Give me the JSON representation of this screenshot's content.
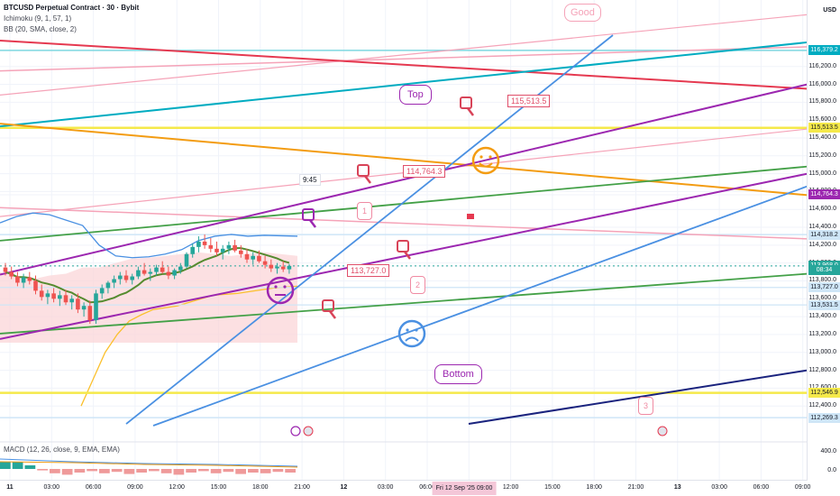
{
  "legend": {
    "title": "BTCUSD Perpetual Contract · 30 · Bybit",
    "ichimoku": "Ichimoku (9, 1, 57, 1)",
    "bb": "BB (20, SMA, close, 2)",
    "macd": "MACD (12, 26, close, 9, EMA, EMA)"
  },
  "colors": {
    "up": "#26a69a",
    "down": "#ef5350",
    "red_line": "#e53950",
    "teal_line": "#00acc1",
    "purple_line": "#9c27b0",
    "green_line": "#43a047",
    "orange_line": "#f39c12",
    "blue_line": "#4a90e2",
    "navy_line": "#1a237e",
    "yellow_line": "#f5e94a",
    "pink_line": "#f5a3b8"
  },
  "chart_data": {
    "type": "candlestick",
    "currency_label": "USD",
    "y_ticks": [
      "116,379.2",
      "116,200.0",
      "116,000.0",
      "115,800.0",
      "115,600.0",
      "115,513.5",
      "115,400.0",
      "115,200.0",
      "115,000.0",
      "114,800.0",
      "114,764.3",
      "114,600.0",
      "114,400.0",
      "114,318.2",
      "114,200.0",
      "114,000.0",
      "113,968.0",
      "113,800.0",
      "113,727.0",
      "113,600.0",
      "113,531.5",
      "113,400.0",
      "113,200.0",
      "113,000.0",
      "112,800.0",
      "112,600.0",
      "112,546.9",
      "112,400.0",
      "112,269.3"
    ],
    "ylim": [
      112180,
      116540
    ],
    "price_tags": [
      {
        "label": "116,379.2",
        "value": 116379.2,
        "color": "#00acc1"
      },
      {
        "label": "115,513.5",
        "value": 115513.5,
        "color": "#f5e94a"
      },
      {
        "label": "114,764.3",
        "value": 114764.3,
        "color": "#9c27b0"
      },
      {
        "label": "114,318.2",
        "value": 114318.2,
        "color": "#cfe6f7"
      },
      {
        "label": "113,968.0",
        "value": 113968.0,
        "color": "#26a69a"
      },
      {
        "label": "08:34",
        "value": 113925,
        "color": "#26a69a"
      },
      {
        "label": "113,727.0",
        "value": 113727.0,
        "color": "#cfe6f7"
      },
      {
        "label": "113,531.5",
        "value": 113531.5,
        "color": "#cfe6f7"
      },
      {
        "label": "112,546.9",
        "value": 112546.9,
        "color": "#f5e94a"
      },
      {
        "label": "112,269.3",
        "value": 112269.3,
        "color": "#cfe6f7"
      }
    ],
    "macd_ticks": [
      "400.0",
      "0.0"
    ],
    "x_ticks": [
      "11",
      "03:00",
      "06:00",
      "09:00",
      "12:00",
      "15:00",
      "18:00",
      "21:00",
      "12",
      "03:00",
      "06:00",
      "09:00",
      "12:00",
      "15:00",
      "18:00",
      "21:00",
      "13",
      "03:00",
      "06:00",
      "09:00"
    ],
    "highlight_time": "Fri 12 Sep '25 09:00",
    "flag_time": "9:45",
    "candles": [
      [
        113950,
        114000,
        113860,
        113900
      ],
      [
        113900,
        113960,
        113820,
        113850
      ],
      [
        113850,
        113900,
        113740,
        113780
      ],
      [
        113780,
        113880,
        113720,
        113840
      ],
      [
        113840,
        113900,
        113760,
        113800
      ],
      [
        113800,
        113860,
        113650,
        113690
      ],
      [
        113690,
        113760,
        113580,
        113620
      ],
      [
        113620,
        113700,
        113540,
        113660
      ],
      [
        113660,
        113720,
        113560,
        113600
      ],
      [
        113600,
        113690,
        113520,
        113640
      ],
      [
        113640,
        113700,
        113530,
        113560
      ],
      [
        113560,
        113640,
        113480,
        113600
      ],
      [
        113600,
        113660,
        113440,
        113480
      ],
      [
        113480,
        113560,
        113400,
        113520
      ],
      [
        113520,
        113580,
        113320,
        113360
      ],
      [
        113360,
        113700,
        113320,
        113660
      ],
      [
        113660,
        113760,
        113600,
        113720
      ],
      [
        113720,
        113800,
        113660,
        113780
      ],
      [
        113780,
        113860,
        113720,
        113820
      ],
      [
        113820,
        113900,
        113760,
        113860
      ],
      [
        113860,
        113920,
        113780,
        113810
      ],
      [
        113810,
        113880,
        113760,
        113850
      ],
      [
        113850,
        113960,
        113820,
        113920
      ],
      [
        113920,
        114000,
        113860,
        113880
      ],
      [
        113880,
        113940,
        113800,
        113900
      ],
      [
        113900,
        113980,
        113860,
        113950
      ],
      [
        113950,
        114020,
        113880,
        113900
      ],
      [
        113900,
        113960,
        113820,
        113860
      ],
      [
        113860,
        113940,
        113820,
        113920
      ],
      [
        113920,
        114000,
        113880,
        113960
      ],
      [
        113960,
        114120,
        113940,
        114100
      ],
      [
        114100,
        114220,
        114060,
        114180
      ],
      [
        114180,
        114300,
        114120,
        114240
      ],
      [
        114240,
        114320,
        114160,
        114200
      ],
      [
        114200,
        114280,
        114120,
        114160
      ],
      [
        114160,
        114240,
        114080,
        114120
      ],
      [
        114120,
        114200,
        114040,
        114160
      ],
      [
        114160,
        114240,
        114100,
        114200
      ],
      [
        114200,
        114260,
        114120,
        114140
      ],
      [
        114140,
        114200,
        114060,
        114100
      ],
      [
        114100,
        114160,
        114000,
        114040
      ],
      [
        114040,
        114120,
        113980,
        114080
      ],
      [
        114080,
        114140,
        114000,
        114020
      ],
      [
        114020,
        114080,
        113940,
        113980
      ],
      [
        113980,
        114040,
        113900,
        113940
      ],
      [
        113940,
        114000,
        113880,
        113960
      ],
      [
        113960,
        114020,
        113900,
        113930
      ],
      [
        113930,
        113990,
        113880,
        113968
      ]
    ],
    "bb_upper": [
      114450,
      114520,
      114560,
      114540,
      114480,
      114420,
      114200,
      114080,
      114060,
      114070,
      114100,
      114150,
      114250,
      114300,
      114320,
      114300,
      114310,
      114305,
      114300
    ],
    "kumo_span_b": [
      113900,
      113850,
      113820,
      113860,
      113880,
      113950,
      113950,
      114000,
      114050,
      114060,
      114080,
      114100,
      114120,
      114100,
      114080,
      114100,
      114120,
      114100,
      114080
    ],
    "signal_line": [
      112400,
      112700,
      113000,
      113200,
      113350,
      113420,
      113480,
      113500,
      113520,
      113560,
      113600,
      113640,
      113650,
      113660,
      113680,
      113700,
      113720,
      113730,
      113740
    ],
    "macd_hist": [
      1,
      1,
      0.5,
      -0.2,
      -0.6,
      -0.8,
      -0.5,
      -0.3,
      -0.6,
      -0.4,
      -0.7,
      -0.5,
      -0.3,
      -0.6,
      -0.8,
      -0.5,
      -0.3,
      -0.6,
      -0.4,
      -0.7,
      -0.5,
      -0.6,
      -0.4,
      -0.5
    ],
    "drawings": {
      "price_callouts": [
        {
          "label": "115,513.5",
          "value": 115513.5
        },
        {
          "label": "114,764.3",
          "value": 114764.3
        },
        {
          "label": "113,727.0",
          "value": 113727.0
        }
      ],
      "bubbles": [
        "Top",
        "Bottom",
        "Good"
      ],
      "wave_labels": [
        "1",
        "2",
        "3"
      ]
    }
  }
}
